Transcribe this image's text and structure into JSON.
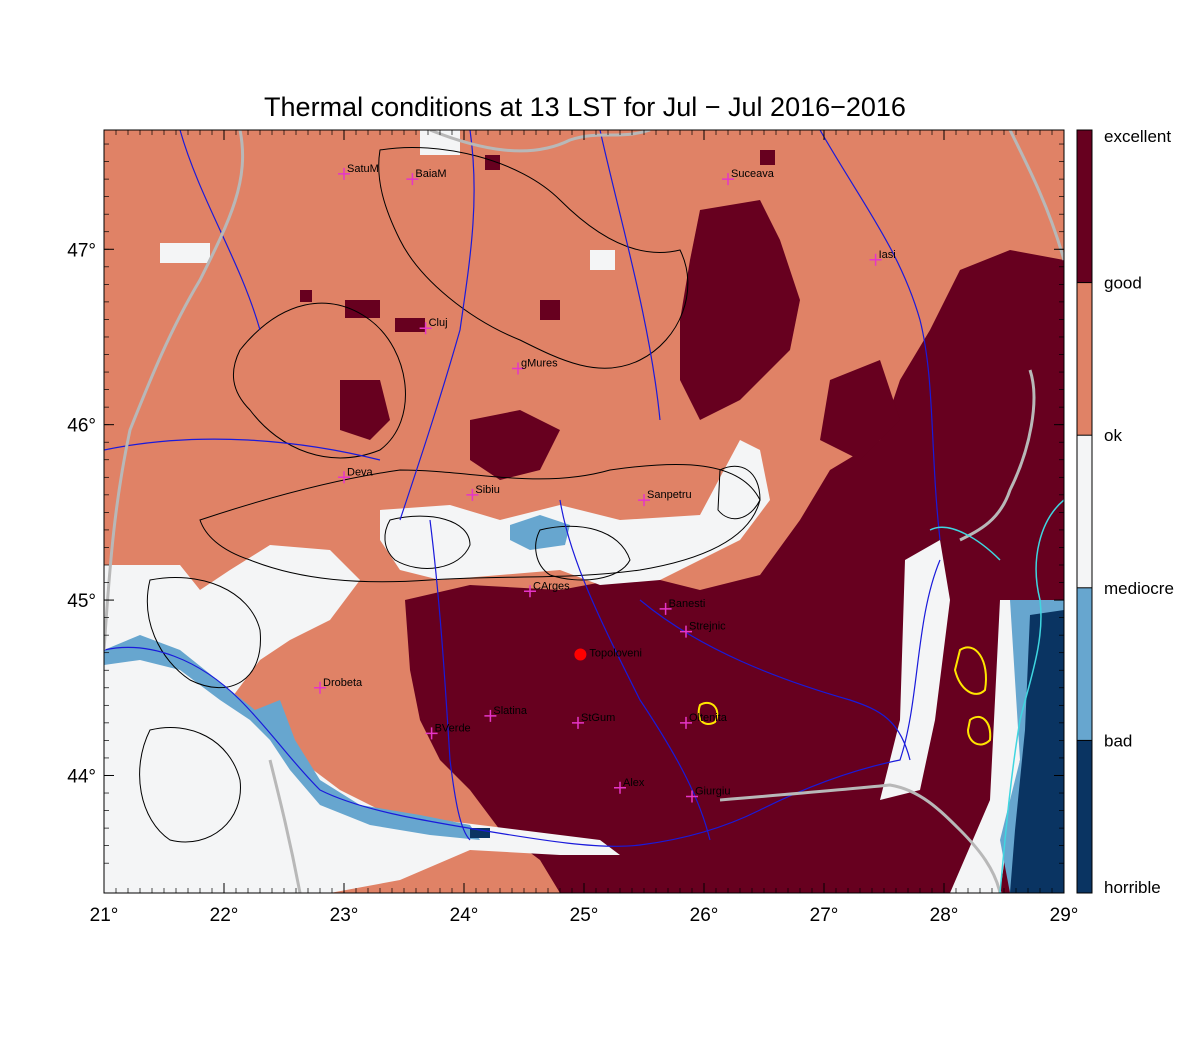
{
  "title": "Thermal conditions at 13 LST for Jul − Jul  2016−2016",
  "axes": {
    "x_ticks": [
      "21°",
      "22°",
      "23°",
      "24°",
      "25°",
      "26°",
      "27°",
      "28°",
      "29°"
    ],
    "y_ticks": [
      "47°",
      "46°",
      "45°",
      "44°"
    ],
    "lon_range": [
      21,
      29
    ],
    "lat_range": [
      43.33,
      47.68
    ]
  },
  "legend": {
    "classes": [
      {
        "label": "excellent",
        "color": "#67001f"
      },
      {
        "label": "good",
        "color": "#e08266"
      },
      {
        "label": "ok",
        "color": "#f4f5f6"
      },
      {
        "label": "mediocre",
        "color": "#67a6cf"
      },
      {
        "label": "bad",
        "color": "#0a3462"
      },
      {
        "label": "horrible",
        "color": ""
      }
    ]
  },
  "colors": {
    "excellent": "#67001f",
    "good": "#e08266",
    "ok": "#f4f5f6",
    "mediocre": "#67a6cf",
    "bad": "#0a3462",
    "rivers": "#1a1adb",
    "borders": "#b8b8b8",
    "contours": "#000000",
    "city_marker": "#e535c8",
    "site_marker": "#ff0000"
  },
  "cities": [
    {
      "name": "SatuM",
      "lon": 23.0,
      "lat": 47.43
    },
    {
      "name": "BaiaM",
      "lon": 23.57,
      "lat": 47.4
    },
    {
      "name": "Suceava",
      "lon": 26.2,
      "lat": 47.4
    },
    {
      "name": "Iasi",
      "lon": 27.43,
      "lat": 46.94
    },
    {
      "name": "Cluj",
      "lon": 23.68,
      "lat": 46.55
    },
    {
      "name": "gMures",
      "lon": 24.45,
      "lat": 46.32
    },
    {
      "name": "Deva",
      "lon": 23.0,
      "lat": 45.7
    },
    {
      "name": "Sibiu",
      "lon": 24.07,
      "lat": 45.6
    },
    {
      "name": "Sanpetru",
      "lon": 25.5,
      "lat": 45.57
    },
    {
      "name": "CArges",
      "lon": 24.55,
      "lat": 45.05
    },
    {
      "name": "Banesti",
      "lon": 25.68,
      "lat": 44.95
    },
    {
      "name": "Strejnic",
      "lon": 25.85,
      "lat": 44.82
    },
    {
      "name": "Drobeta",
      "lon": 22.8,
      "lat": 44.5
    },
    {
      "name": "Slatina",
      "lon": 24.22,
      "lat": 44.34
    },
    {
      "name": "StGum",
      "lon": 24.95,
      "lat": 44.3
    },
    {
      "name": "Oltenita",
      "lon": 25.85,
      "lat": 44.3
    },
    {
      "name": "BVerde",
      "lon": 23.73,
      "lat": 44.24
    },
    {
      "name": "Alex",
      "lon": 25.3,
      "lat": 43.93
    },
    {
      "name": "Giurgiu",
      "lon": 25.9,
      "lat": 43.88
    }
  ],
  "site": {
    "name": "Topoloveni",
    "lon": 24.97,
    "lat": 44.69
  }
}
